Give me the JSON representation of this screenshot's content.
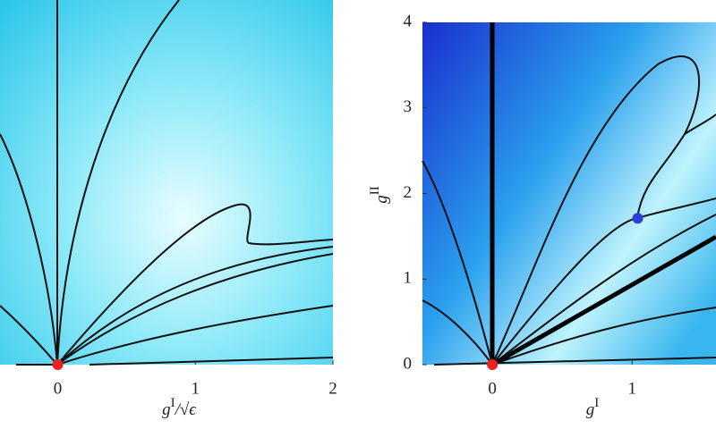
{
  "chart_data": [
    {
      "type": "scatter",
      "xlabel": {
        "symbol": "g",
        "superscript": "I",
        "suffix": "/√ϵ"
      },
      "xlim": [
        -0.42,
        2
      ],
      "xticks": [
        0,
        1,
        2
      ],
      "ylim": [
        0,
        4.26
      ],
      "series": [
        {
          "color": "#e8231f",
          "x": [
            0
          ],
          "y": [
            0
          ]
        }
      ]
    },
    {
      "type": "scatter",
      "xlabel": {
        "symbol": "g",
        "superscript": "I"
      },
      "ylabel": {
        "symbol": "g",
        "superscript": "II"
      },
      "xlim": [
        -0.5,
        1.6
      ],
      "xticks": [
        0,
        1
      ],
      "ylim": [
        0,
        4
      ],
      "yticks": [
        0,
        1,
        2,
        3,
        4
      ],
      "series": [
        {
          "color": "#e8231f",
          "x": [
            0
          ],
          "y": [
            0
          ]
        },
        {
          "color": "#2a3fd8",
          "x": [
            1.04
          ],
          "y": [
            1.71
          ]
        }
      ]
    }
  ]
}
